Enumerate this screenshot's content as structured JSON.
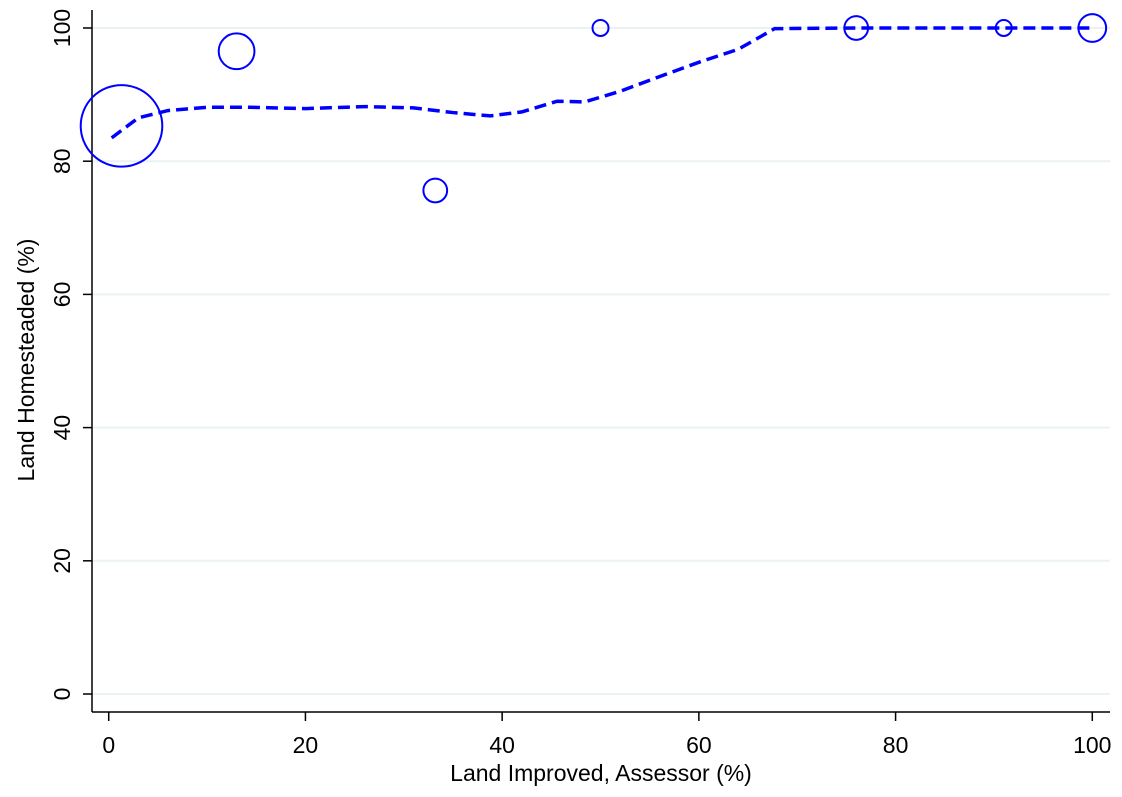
{
  "chart_data": {
    "type": "scatter",
    "x_label": "Land Improved, Assessor (%)",
    "y_label": "Land Homesteaded (%)",
    "xlim": [
      -1.7,
      101.8
    ],
    "ylim": [
      -2.7,
      102.7
    ],
    "xticks": [
      0,
      20,
      40,
      60,
      80,
      100
    ],
    "yticks": [
      0,
      20,
      40,
      60,
      80,
      100
    ],
    "grid": true,
    "points": {
      "color": "#0000ff",
      "x": [
        1.3,
        13,
        33.2,
        50,
        76,
        91,
        100
      ],
      "values": [
        85.3,
        96.5,
        75.6,
        100,
        100,
        100,
        100
      ],
      "sizes": [
        26,
        5,
        2.2,
        1,
        2.2,
        1,
        3
      ]
    },
    "fit_line": {
      "color": "#0000ff",
      "dashed": true,
      "x": [
        0.3,
        3,
        6,
        10,
        14,
        20,
        26,
        31,
        35,
        38.8,
        42,
        45.6,
        48.4,
        52,
        56,
        60.1,
        64,
        67.7,
        76,
        90,
        100
      ],
      "values": [
        83.5,
        86.5,
        87.6,
        88.1,
        88.1,
        87.9,
        88.2,
        88,
        87.3,
        86.8,
        87.4,
        89,
        88.9,
        90.5,
        92.7,
        94.9,
        96.8,
        99.9,
        100,
        100,
        100
      ]
    }
  }
}
